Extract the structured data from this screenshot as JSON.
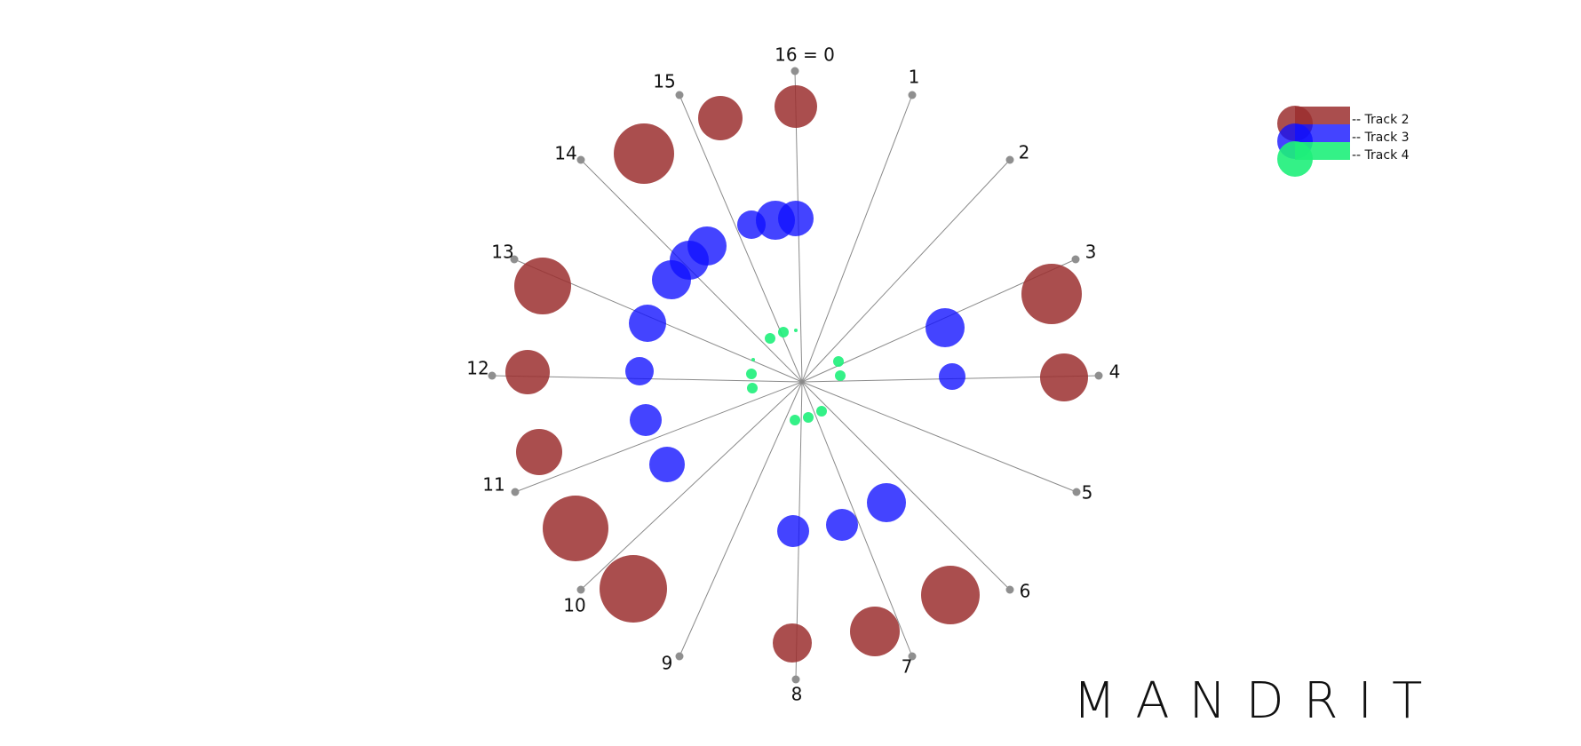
{
  "brand": "MANDRIT",
  "step_labels": [
    "16 = 0",
    "1",
    "2",
    "3",
    "4",
    "5",
    "6",
    "7",
    "8",
    "9",
    "10",
    "11",
    "12",
    "13",
    "14",
    "15"
  ],
  "tracks": [
    {
      "name": "Track 2",
      "legend_label": "-- Track 2",
      "color": "#9b2f2f"
    },
    {
      "name": "Track 3",
      "legend_label": "-- Track 3",
      "color": "#1010ff"
    },
    {
      "name": "Track 4",
      "legend_label": "-- Track 4",
      "color": "#1ef07a"
    }
  ],
  "steps": 16
}
